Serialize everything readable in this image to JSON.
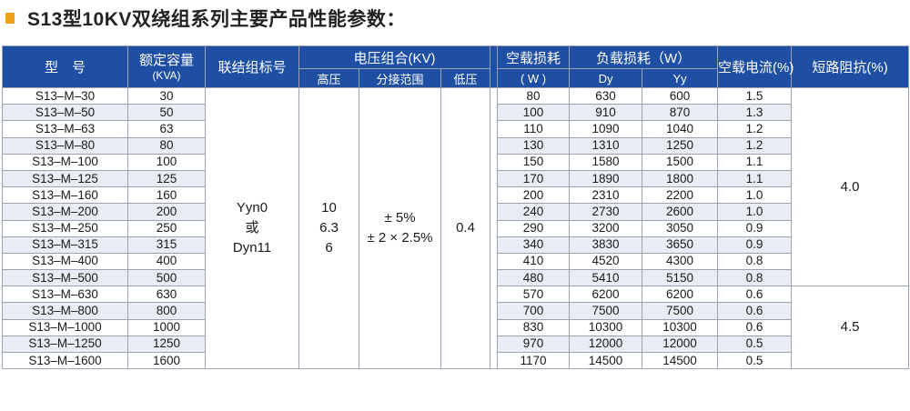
{
  "title": "S13型10KV双绕组系列主要产品性能参数：",
  "accent_color": "#f0a019",
  "header_color": "#1f4fa3",
  "headers": {
    "model": "型　号",
    "capacity": "额定容量",
    "capacity_unit": "(KVA)",
    "connection": "联结组标号",
    "voltage": "电压组合(KV)",
    "high_voltage": "高压",
    "tap_range": "分接范围",
    "low_voltage": "低压",
    "noload_loss": "空载损耗",
    "noload_loss_unit": "( W )",
    "load_loss": "负载损耗（W）",
    "dy": "Dy",
    "yy": "Yy",
    "noload_current": "空载电流(%)",
    "impedance": "短路阻抗(%)"
  },
  "merged": {
    "connection_1": "Yyn0",
    "connection_2": "或",
    "connection_3": "Dyn11",
    "hv_1": "10",
    "hv_2": "6.3",
    "hv_3": "6",
    "tap_1": "± 5%",
    "tap_2": "± 2 × 2.5%",
    "lv": "0.4",
    "impedance_a": "4.0",
    "impedance_b": "4.5"
  },
  "rows": [
    {
      "model": "S13–M–30",
      "capacity": "30",
      "noload": "80",
      "dy": "630",
      "yy": "600",
      "current": "1.5"
    },
    {
      "model": "S13–M–50",
      "capacity": "50",
      "noload": "100",
      "dy": "910",
      "yy": "870",
      "current": "1.3"
    },
    {
      "model": "S13–M–63",
      "capacity": "63",
      "noload": "110",
      "dy": "1090",
      "yy": "1040",
      "current": "1.2"
    },
    {
      "model": "S13–M–80",
      "capacity": "80",
      "noload": "130",
      "dy": "1310",
      "yy": "1250",
      "current": "1.2"
    },
    {
      "model": "S13–M–100",
      "capacity": "100",
      "noload": "150",
      "dy": "1580",
      "yy": "1500",
      "current": "1.1"
    },
    {
      "model": "S13–M–125",
      "capacity": "125",
      "noload": "170",
      "dy": "1890",
      "yy": "1800",
      "current": "1.1"
    },
    {
      "model": "S13–M–160",
      "capacity": "160",
      "noload": "200",
      "dy": "2310",
      "yy": "2200",
      "current": "1.0"
    },
    {
      "model": "S13–M–200",
      "capacity": "200",
      "noload": "240",
      "dy": "2730",
      "yy": "2600",
      "current": "1.0"
    },
    {
      "model": "S13–M–250",
      "capacity": "250",
      "noload": "290",
      "dy": "3200",
      "yy": "3050",
      "current": "0.9"
    },
    {
      "model": "S13–M–315",
      "capacity": "315",
      "noload": "340",
      "dy": "3830",
      "yy": "3650",
      "current": "0.9"
    },
    {
      "model": "S13–M–400",
      "capacity": "400",
      "noload": "410",
      "dy": "4520",
      "yy": "4300",
      "current": "0.8"
    },
    {
      "model": "S13–M–500",
      "capacity": "500",
      "noload": "480",
      "dy": "5410",
      "yy": "5150",
      "current": "0.8"
    },
    {
      "model": "S13–M–630",
      "capacity": "630",
      "noload": "570",
      "dy": "6200",
      "yy": "6200",
      "current": "0.6"
    },
    {
      "model": "S13–M–800",
      "capacity": "800",
      "noload": "700",
      "dy": "7500",
      "yy": "7500",
      "current": "0.6"
    },
    {
      "model": "S13–M–1000",
      "capacity": "1000",
      "noload": "830",
      "dy": "10300",
      "yy": "10300",
      "current": "0.6"
    },
    {
      "model": "S13–M–1250",
      "capacity": "1250",
      "noload": "970",
      "dy": "12000",
      "yy": "12000",
      "current": "0.5"
    },
    {
      "model": "S13–M–1600",
      "capacity": "1600",
      "noload": "1170",
      "dy": "14500",
      "yy": "14500",
      "current": "0.5"
    }
  ]
}
